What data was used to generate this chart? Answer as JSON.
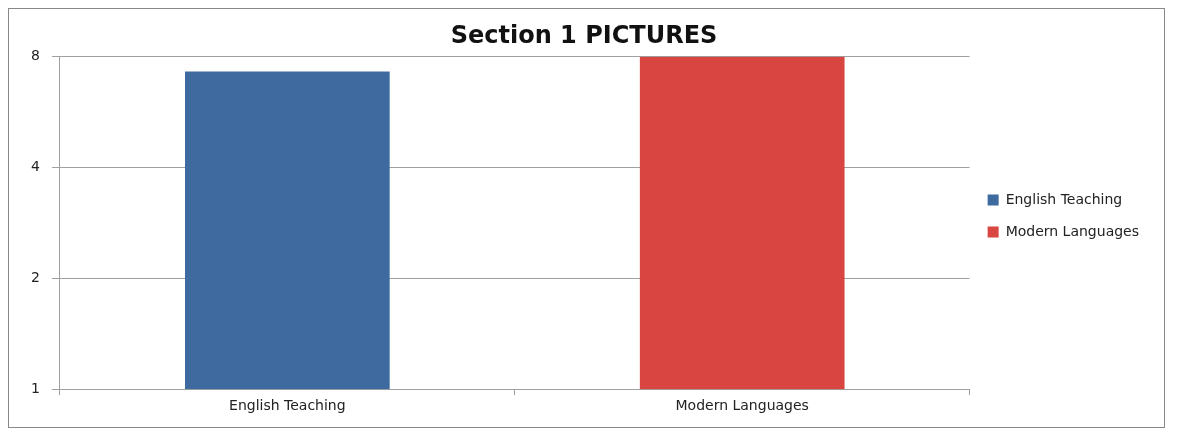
{
  "chart_data": {
    "type": "bar",
    "title": "Section 1 PICTURES",
    "categories": [
      "English Teaching",
      "Modern Languages"
    ],
    "series": [
      {
        "name": "English Teaching",
        "color": "#3e6aa0",
        "values": [
          7.3,
          null
        ]
      },
      {
        "name": "Modern Languages",
        "color": "#d94540",
        "values": [
          null,
          8
        ]
      }
    ],
    "log": true,
    "ylim": [
      1,
      8
    ],
    "yticks": [
      1,
      2,
      4,
      8
    ],
    "grid": "y",
    "legend": "right"
  }
}
